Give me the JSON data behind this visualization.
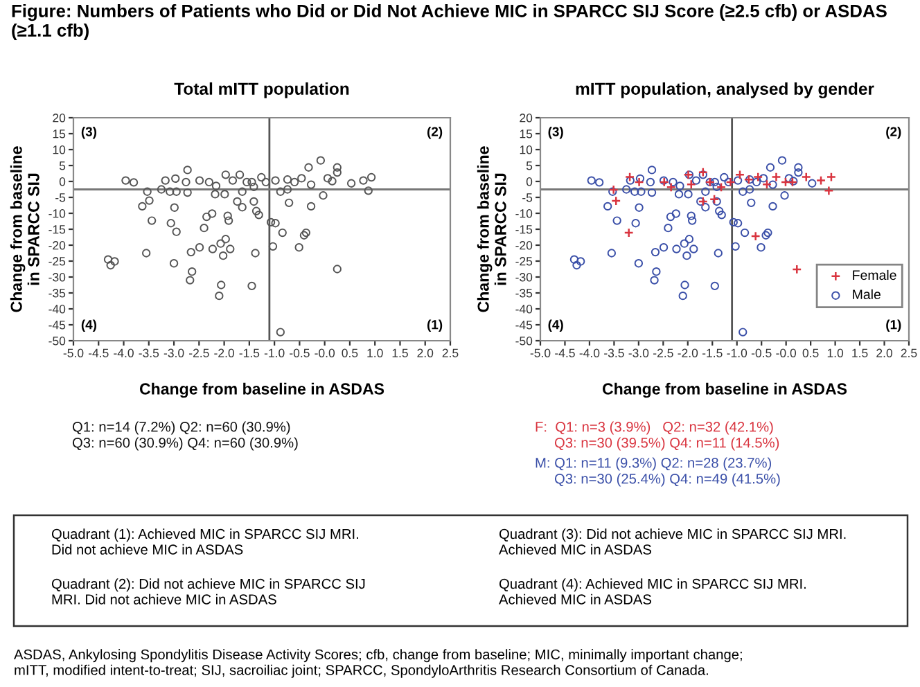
{
  "chart_data": [
    {
      "type": "other",
      "title": "Figure: Numbers of Patients who Did or Did Not Achieve MIC in SPARCC SIJ Score (≥2.5 cfb) or ASDAS (≥1.1 cfb)",
      "annotations": [
        "Quadrant (1): Achieved MIC in SPARCC SIJ MRI.\nDid not achieve MIC in ASDAS",
        "Quadrant (2): Did not achieve MIC in SPARCC SIJ\nMRI. Did not achieve MIC in ASDAS",
        "Quadrant (3): Did not achieve MIC in SPARCC SIJ MRI.\nAchieved MIC in ASDAS",
        "Quadrant (4): Achieved MIC in SPARCC SIJ MRI.\nAchieved MIC in ASDAS",
        "ASDAS, Ankylosing Spondylitis Disease Activity Scores; cfb, change from baseline; MIC, minimally important change;\nmITT, modified intent-to-treat; SIJ, sacroiliac joint; SPARCC, SpondyloArthritis Research Consortium of Canada."
      ]
    },
    {
      "type": "scatter",
      "title": "Total mITT population",
      "xlabel": "Change from baseline in ASDAS",
      "ylabel": "Change from baseline\nin SPARCC SIJ",
      "xlim": [
        -5.0,
        2.5
      ],
      "ylim": [
        -50,
        20
      ],
      "xticks": [
        {
          "value": -5,
          "label": "-5.0"
        },
        -4.5,
        {
          "value": -4,
          "label": "-4.0"
        },
        -3.5,
        {
          "value": -3,
          "label": "-3.0"
        },
        -2.5,
        {
          "value": -2,
          "label": "-2.0"
        },
        -1.5,
        {
          "value": -1,
          "label": "-1.0"
        },
        -0.5,
        {
          "value": 0,
          "label": "-0.0"
        },
        0.5,
        {
          "value": 1,
          "label": "1.0"
        },
        1.5,
        {
          "value": 2,
          "label": "2.0"
        },
        2.5
      ],
      "yticks": [
        20,
        15,
        10,
        5,
        0,
        -5,
        -10,
        -15,
        -20,
        -25,
        -30,
        -35,
        -40,
        -45,
        -50
      ],
      "grid": false,
      "legend": false,
      "ref_lines": [
        {
          "axis": "x",
          "value": -1.1,
          "color": "#555555"
        },
        {
          "axis": "y",
          "value": -2.5,
          "color": "#777777"
        }
      ],
      "annotations": [
        "(3)",
        "(2)",
        "(4)",
        "(1)",
        "Q1: n=14 (7.2%) Q2: n=60 (30.9%)",
        "Q3: n=60 (30.9%) Q4: n=60 (30.9%)"
      ],
      "series": [
        {
          "color": "#555555",
          "marker": "circle",
          "x": [
            -4.31,
            -4.26,
            -4.18,
            -3.96,
            -3.8,
            -3.53,
            -3.63,
            -3.49,
            -3.44,
            -3.55,
            -3.25,
            -3.17,
            -3.08,
            -2.97,
            -2.95,
            -2.99,
            -3.06,
            -2.95,
            -3.0,
            -2.73,
            -2.76,
            -2.73,
            -2.66,
            -2.64,
            -2.68,
            -2.49,
            -2.3,
            -2.16,
            -2.18,
            -2.35,
            -2.4,
            -2.49,
            -2.24,
            -2.23,
            -2.07,
            -2.06,
            -2.1,
            -2.02,
            -1.97,
            -1.99,
            -1.93,
            -1.91,
            -1.97,
            -1.88,
            -1.83,
            -1.74,
            -1.69,
            -1.64,
            -1.64,
            -1.45,
            -1.41,
            -1.45,
            -1.38,
            -1.41,
            -1.36,
            -1.31,
            -1.26,
            -1.17,
            -1.07,
            -0.98,
            -1.03,
            -0.88,
            -0.88,
            -0.84,
            -0.74,
            -0.71,
            -0.74,
            -0.51,
            -0.41,
            -0.37,
            -0.27,
            -0.27,
            -0.32,
            -0.08,
            -0.03,
            0.25,
            0.25,
            0.25,
            0.53,
            0.77,
            0.87,
            0.93,
            -0.6,
            -0.46,
            0.06,
            0.15,
            -0.98,
            -1.55
          ],
          "values": [
            -24.5,
            -26.3,
            -25.1,
            0.3,
            -0.3,
            -3.2,
            -7.8,
            -6.0,
            -12.3,
            -22.5,
            -2.5,
            0.3,
            -3.2,
            0.9,
            -3.2,
            -8.2,
            -13.1,
            -15.8,
            -25.7,
            3.6,
            -0.2,
            -3.5,
            -22.2,
            -28.3,
            -31.0,
            0.3,
            -0.2,
            -1.4,
            -4.0,
            -11.1,
            -14.6,
            -20.7,
            -10.1,
            -21.2,
            -19.5,
            -32.5,
            -35.9,
            -23.3,
            2.1,
            -4.0,
            -10.8,
            -12.3,
            -18.1,
            -21.2,
            0.3,
            -6.3,
            2.1,
            -3.2,
            -8.1,
            -0.2,
            -1.7,
            -32.8,
            -22.5,
            -6.3,
            -9.3,
            -10.5,
            1.3,
            -0.2,
            -12.8,
            -13.1,
            -20.4,
            -47.3,
            -3.2,
            -16.1,
            0.6,
            -6.7,
            -2.5,
            -20.7,
            -16.9,
            -16.1,
            -7.8,
            -1.0,
            4.4,
            6.6,
            -4.4,
            2.8,
            4.4,
            -27.5,
            -0.6,
            0.3,
            -2.9,
            1.3,
            -0.2,
            1.0,
            1.0,
            0.1,
            0.3,
            -0.2
          ]
        }
      ]
    },
    {
      "type": "scatter",
      "title": "mITT population, analysed by gender",
      "xlabel": "Change from baseline in ASDAS",
      "ylabel": "Change from baseline\nin SPARCC SIJ",
      "xlim": [
        -5.0,
        2.5
      ],
      "ylim": [
        -50,
        20
      ],
      "xticks": [
        {
          "value": -5,
          "label": "-5.0"
        },
        -4.5,
        {
          "value": -4,
          "label": "-4.0"
        },
        -3.5,
        {
          "value": -3,
          "label": "-3.0"
        },
        -2.5,
        {
          "value": -2,
          "label": "-2.0"
        },
        -1.5,
        {
          "value": -1,
          "label": "-1.0"
        },
        -0.5,
        {
          "value": 0,
          "label": "-0.0"
        },
        0.5,
        {
          "value": 1,
          "label": "1.0"
        },
        1.5,
        {
          "value": 2,
          "label": "2.0"
        },
        2.5
      ],
      "yticks": [
        20,
        15,
        10,
        5,
        0,
        -5,
        -10,
        -15,
        -20,
        -25,
        -30,
        -35,
        -40,
        -45,
        -50
      ],
      "grid": false,
      "legend": "bottom right",
      "ref_lines": [
        {
          "axis": "x",
          "value": -1.1,
          "color": "#555555"
        },
        {
          "axis": "y",
          "value": -2.5,
          "color": "#777777"
        }
      ],
      "annotations": [
        "(3)",
        "(2)",
        "(4)",
        "(1)",
        "F:  Q1: n=3 (3.9%)   Q2: n=32 (42.1%)",
        "Q3: n=30 (39.5%) Q4: n=11 (14.5%)",
        "M: Q1: n=11 (9.3%) Q2: n=28 (23.7%)",
        "Q3: n=30 (25.4%) Q4: n=49 (41.5%)"
      ],
      "series": [
        {
          "name": "Female",
          "color": "#d9343f",
          "marker": "cross",
          "x": [
            -3.46,
            -3.2,
            0.22,
            0.87,
            0.92,
            0.71,
            -3.18,
            -2.48,
            -2.34,
            -1.99,
            -1.93,
            -1.69,
            -1.55,
            -1.46,
            -1.32,
            -1.13,
            -0.94,
            -0.76,
            -0.57,
            -0.39,
            -0.2,
            -0.01,
            0.41,
            0.13,
            -1.69,
            -0.62,
            -2.99,
            -3.51
          ],
          "values": [
            -6.1,
            -16.1,
            -27.6,
            -2.9,
            1.4,
            0.3,
            1.4,
            -0.2,
            -1.8,
            2.1,
            -0.9,
            2.9,
            -0.2,
            -5.6,
            -1.8,
            -0.2,
            2.1,
            0.6,
            1.4,
            -0.9,
            1.4,
            -0.2,
            1.4,
            -0.2,
            -6.3,
            -17.2,
            -0.2,
            -2.6
          ]
        },
        {
          "name": "Male",
          "color": "#3a4fa8",
          "marker": "circle",
          "x": [
            -4.31,
            -4.26,
            -4.18,
            -3.96,
            -3.8,
            -3.53,
            -3.63,
            -3.44,
            -3.55,
            -3.25,
            -3.17,
            -3.08,
            -2.97,
            -2.95,
            -2.99,
            -3.06,
            -3.0,
            -2.73,
            -2.76,
            -2.73,
            -2.66,
            -2.64,
            -2.68,
            -2.49,
            -2.3,
            -2.16,
            -2.18,
            -2.35,
            -2.4,
            -2.49,
            -2.24,
            -2.23,
            -2.07,
            -2.06,
            -2.1,
            -2.02,
            -1.97,
            -1.99,
            -1.93,
            -1.91,
            -1.97,
            -1.88,
            -1.83,
            -1.74,
            -1.69,
            -1.64,
            -1.64,
            -1.45,
            -1.41,
            -1.45,
            -1.38,
            -1.41,
            -1.36,
            -1.31,
            -1.26,
            -1.17,
            -1.07,
            -0.98,
            -1.03,
            -0.88,
            -0.88,
            -0.84,
            -0.74,
            -0.71,
            -0.74,
            -0.51,
            -0.41,
            -0.37,
            -0.27,
            -0.27,
            -0.32,
            -0.08,
            -0.03,
            0.25,
            0.25,
            0.53,
            -0.6,
            -0.46,
            0.06,
            0.15,
            -0.98,
            -1.55
          ],
          "values": [
            -24.5,
            -26.3,
            -25.1,
            0.3,
            -0.3,
            -3.2,
            -7.8,
            -12.3,
            -22.5,
            -2.5,
            0.3,
            -3.2,
            0.9,
            -3.2,
            -8.2,
            -13.1,
            -25.7,
            3.6,
            -0.2,
            -3.5,
            -22.2,
            -28.3,
            -31.0,
            0.3,
            -0.2,
            -1.4,
            -4.0,
            -11.1,
            -14.6,
            -20.7,
            -10.1,
            -21.2,
            -19.5,
            -32.5,
            -35.9,
            -23.3,
            2.1,
            -4.0,
            -10.8,
            -12.3,
            -18.1,
            -21.2,
            0.3,
            -6.3,
            2.1,
            -3.2,
            -8.1,
            -0.2,
            -1.7,
            -32.8,
            -22.5,
            -6.3,
            -9.3,
            -10.5,
            1.3,
            -0.2,
            -12.8,
            -13.1,
            -20.4,
            -47.3,
            -3.2,
            -16.1,
            0.6,
            -6.7,
            -2.5,
            -20.7,
            -16.9,
            -16.1,
            -7.8,
            -1.0,
            4.4,
            6.6,
            -4.4,
            2.8,
            4.4,
            -0.6,
            -0.2,
            1.0,
            1.0,
            0.1,
            0.3,
            -0.2
          ]
        }
      ]
    }
  ]
}
